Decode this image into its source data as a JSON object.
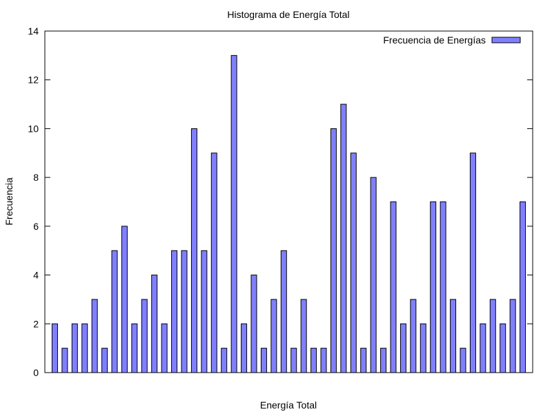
{
  "chart_data": {
    "type": "bar",
    "title": "Histograma de Energía Total",
    "x_label": "Energía Total",
    "y_label": "Frecuencia",
    "legend": "top-right",
    "categories": [
      null,
      null,
      null,
      null,
      null,
      null,
      null,
      null,
      null,
      null,
      null,
      null,
      null,
      null,
      null,
      null,
      null,
      null,
      null,
      null,
      null,
      null,
      null,
      null,
      null,
      null,
      null,
      null,
      null,
      null,
      null,
      null,
      null,
      null,
      null,
      null,
      null,
      null,
      null,
      null,
      null,
      null,
      null,
      null,
      null,
      null,
      null,
      null
    ],
    "series": [
      {
        "name": "Frecuencia de Energías",
        "color": "#8080ff",
        "values": [
          2,
          1,
          2,
          2,
          3,
          1,
          5,
          6,
          2,
          3,
          4,
          2,
          5,
          5,
          10,
          5,
          9,
          1,
          13,
          2,
          4,
          1,
          3,
          5,
          1,
          3,
          1,
          1,
          10,
          11,
          9,
          1,
          8,
          1,
          7,
          2,
          3,
          2,
          7,
          7,
          3,
          1,
          9,
          2,
          3,
          2,
          3,
          7
        ]
      }
    ],
    "ylim": [
      0,
      14
    ],
    "yticks": [
      0,
      2,
      4,
      6,
      8,
      10,
      12,
      14
    ]
  }
}
